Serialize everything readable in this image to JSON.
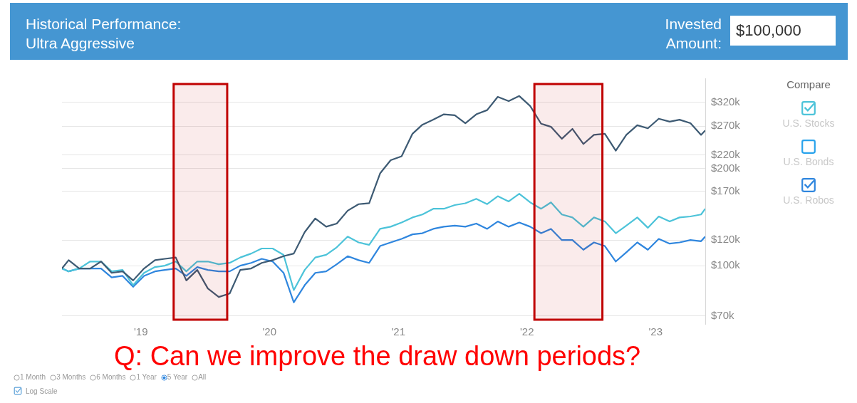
{
  "chart_data": {
    "type": "line",
    "title": "Historical Performance:",
    "subtitle": "Ultra Aggressive",
    "x": [
      "2018-05-22",
      "2018-06-10",
      "2018-07-10",
      "2018-08-10",
      "2018-09-10",
      "2018-10-10",
      "2018-11-10",
      "2018-12-10",
      "2019-01-10",
      "2019-02-10",
      "2019-03-10",
      "2019-04-10",
      "2019-05-10",
      "2019-06-10",
      "2019-07-10",
      "2019-08-10",
      "2019-09-10",
      "2019-10-10",
      "2019-11-10",
      "2019-12-10",
      "2020-01-10",
      "2020-02-10",
      "2020-03-10",
      "2020-04-10",
      "2020-05-10",
      "2020-06-10",
      "2020-07-10",
      "2020-08-10",
      "2020-09-10",
      "2020-10-10",
      "2020-11-10",
      "2020-12-10",
      "2021-01-10",
      "2021-02-10",
      "2021-03-10",
      "2021-04-10",
      "2021-05-10",
      "2021-06-10",
      "2021-07-10",
      "2021-08-10",
      "2021-09-10",
      "2021-10-10",
      "2021-11-10",
      "2021-12-10",
      "2022-01-10",
      "2022-02-10",
      "2022-03-10",
      "2022-04-10",
      "2022-05-10",
      "2022-06-10",
      "2022-07-10",
      "2022-08-10",
      "2022-09-10",
      "2022-10-10",
      "2022-11-10",
      "2022-12-10",
      "2023-01-10",
      "2023-02-10",
      "2023-03-10",
      "2023-04-10",
      "2023-05-10",
      "2023-05-22"
    ],
    "series": [
      {
        "color": "#3d5a73",
        "values": [
          98,
          104,
          98,
          98,
          103,
          95,
          96,
          90,
          98,
          104,
          105,
          106,
          90,
          97,
          85,
          80,
          82,
          97,
          98,
          102,
          104,
          107,
          109,
          127,
          140,
          132,
          135,
          148,
          155,
          156,
          193,
          212,
          218,
          256,
          273,
          283,
          294,
          292,
          276,
          294,
          303,
          333,
          323,
          335,
          312,
          275,
          269,
          247,
          265,
          238,
          254,
          256,
          227,
          254,
          272,
          266,
          285,
          279,
          283,
          276,
          254,
          262
        ]
      },
      {
        "name": "U.S. Stocks",
        "color": "#4cc3d9",
        "values": [
          98,
          96,
          98,
          103,
          103,
          96,
          97,
          87,
          95,
          99,
          100,
          103,
          96,
          103,
          103,
          101,
          102,
          106,
          109,
          113,
          113,
          108,
          84,
          97,
          106,
          108,
          114,
          123,
          118,
          116,
          130,
          132,
          136,
          141,
          144,
          150,
          150,
          154,
          156,
          161,
          155,
          164,
          158,
          167,
          157,
          150,
          157,
          144,
          141,
          132,
          141,
          137,
          126,
          133,
          141,
          131,
          142,
          137,
          141,
          142,
          144,
          150
        ]
      },
      {
        "name": "U.S. Bonds",
        "color": "#29a3ec",
        "values": [
          null,
          null,
          null,
          null,
          null,
          null,
          null,
          null,
          null,
          null,
          null,
          null,
          null,
          null,
          null,
          null,
          null,
          null,
          null,
          null,
          null,
          null,
          null,
          null,
          null,
          null,
          null,
          null,
          null,
          null,
          null,
          null,
          null,
          null,
          null,
          null,
          null,
          null,
          null,
          null,
          null,
          null,
          null,
          null,
          null,
          null,
          null,
          null,
          null,
          null,
          null,
          null,
          null,
          null,
          null,
          null,
          null,
          null,
          null,
          null,
          null,
          null
        ]
      },
      {
        "name": "U.S. Robos",
        "color": "#2f86de",
        "values": [
          98,
          96,
          98,
          98,
          98,
          92,
          93,
          86,
          93,
          96,
          97,
          98,
          93,
          99,
          97,
          96,
          96,
          100,
          102,
          105,
          103,
          95,
          77,
          87,
          95,
          96,
          101,
          107,
          104,
          102,
          115,
          118,
          121,
          125,
          126,
          130,
          132,
          133,
          132,
          135,
          130,
          137,
          132,
          136,
          132,
          126,
          130,
          120,
          120,
          112,
          118,
          115,
          103,
          110,
          118,
          112,
          121,
          117,
          118,
          120,
          119,
          123
        ]
      }
    ],
    "xlim": [
      "2018-05-22",
      "2023-05-22"
    ],
    "xticks": [
      {
        "value": "2019",
        "label": "'19"
      },
      {
        "value": "2020",
        "label": "'20"
      },
      {
        "value": "2021",
        "label": "'21"
      },
      {
        "value": "2022",
        "label": "'22"
      },
      {
        "value": "2023",
        "label": "'23"
      }
    ],
    "ylim": [
      66,
      380
    ],
    "yticks": [
      {
        "value": 70,
        "label": "$70k"
      },
      {
        "value": 100,
        "label": "$100k"
      },
      {
        "value": 120,
        "label": "$120k"
      },
      {
        "value": 170,
        "label": "$170k"
      },
      {
        "value": 200,
        "label": "$200k"
      },
      {
        "value": 220,
        "label": "$220k"
      },
      {
        "value": 270,
        "label": "$270k"
      },
      {
        "value": 320,
        "label": "$320k"
      }
    ],
    "log": true,
    "grid": "y",
    "legend": "right",
    "legend_title": "Compare",
    "marker": "none",
    "line_style": "solid",
    "bands": [
      {
        "axis": "x",
        "from": "2019-04-04",
        "to": "2019-09-03",
        "color": "#c00000"
      },
      {
        "axis": "x",
        "from": "2022-01-22",
        "to": "2022-08-03",
        "color": "#c00000"
      }
    ],
    "annotations": [
      "Invested Amount:",
      "$100,000",
      "Q:  Can we improve the draw down periods?",
      "1 Month",
      "3 Months",
      "6 Months",
      "1 Year",
      "5 Year",
      "All",
      "Log Scale"
    ]
  }
}
